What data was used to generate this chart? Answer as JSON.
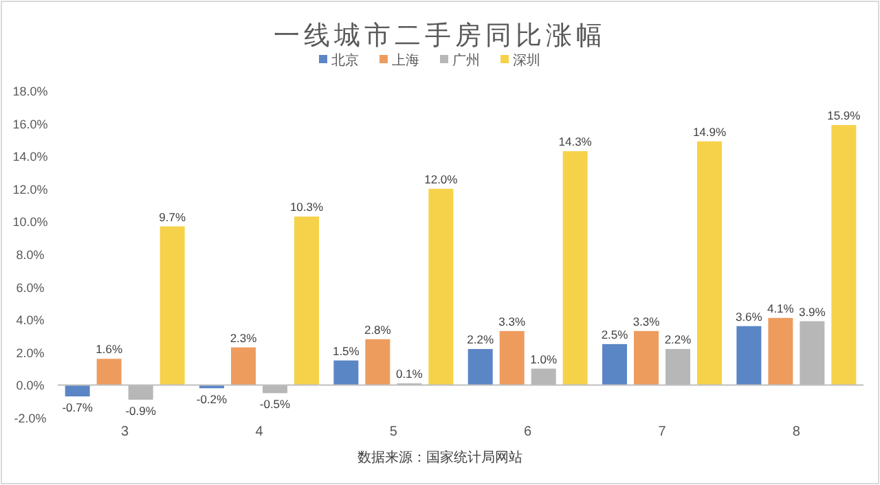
{
  "chart_data": {
    "type": "bar",
    "title": "一线城市二手房同比涨幅",
    "categories": [
      "3",
      "4",
      "5",
      "6",
      "7",
      "8"
    ],
    "series": [
      {
        "name": "北京",
        "color": "#5b86c6",
        "values": [
          -0.7,
          -0.2,
          1.5,
          2.2,
          2.5,
          3.6
        ],
        "value_labels": [
          "-0.7%",
          "-0.2%",
          "1.5%",
          "2.2%",
          "2.5%",
          "3.6%"
        ]
      },
      {
        "name": "上海",
        "color": "#ee9c5e",
        "values": [
          1.6,
          2.3,
          2.8,
          3.3,
          3.3,
          4.1
        ],
        "value_labels": [
          "1.6%",
          "2.3%",
          "2.8%",
          "3.3%",
          "3.3%",
          "4.1%"
        ]
      },
      {
        "name": "广州",
        "color": "#b7b7b7",
        "values": [
          -0.9,
          -0.5,
          0.1,
          1.0,
          2.2,
          3.9
        ],
        "value_labels": [
          "-0.9%",
          "-0.5%",
          "0.1%",
          "1.0%",
          "2.2%",
          "3.9%"
        ]
      },
      {
        "name": "深圳",
        "color": "#f6d24a",
        "values": [
          9.7,
          10.3,
          12.0,
          14.3,
          14.9,
          15.9
        ],
        "value_labels": [
          "9.7%",
          "10.3%",
          "12.0%",
          "14.3%",
          "14.9%",
          "15.9%"
        ]
      }
    ],
    "ylim": [
      -2,
      18
    ],
    "yticks": [
      {
        "value": -2,
        "label": "-2.0%"
      },
      {
        "value": 0,
        "label": "0.0%"
      },
      {
        "value": 2,
        "label": "2.0%"
      },
      {
        "value": 4,
        "label": "4.0%"
      },
      {
        "value": 6,
        "label": "6.0%"
      },
      {
        "value": 8,
        "label": "8.0%"
      },
      {
        "value": 10,
        "label": "10.0%"
      },
      {
        "value": 12,
        "label": "12.0%"
      },
      {
        "value": 14,
        "label": "14.0%"
      },
      {
        "value": 16,
        "label": "16.0%"
      },
      {
        "value": 18,
        "label": "18.0%"
      }
    ],
    "legend": "top",
    "annotations": [
      "数据来源：国家统计局网站"
    ]
  }
}
